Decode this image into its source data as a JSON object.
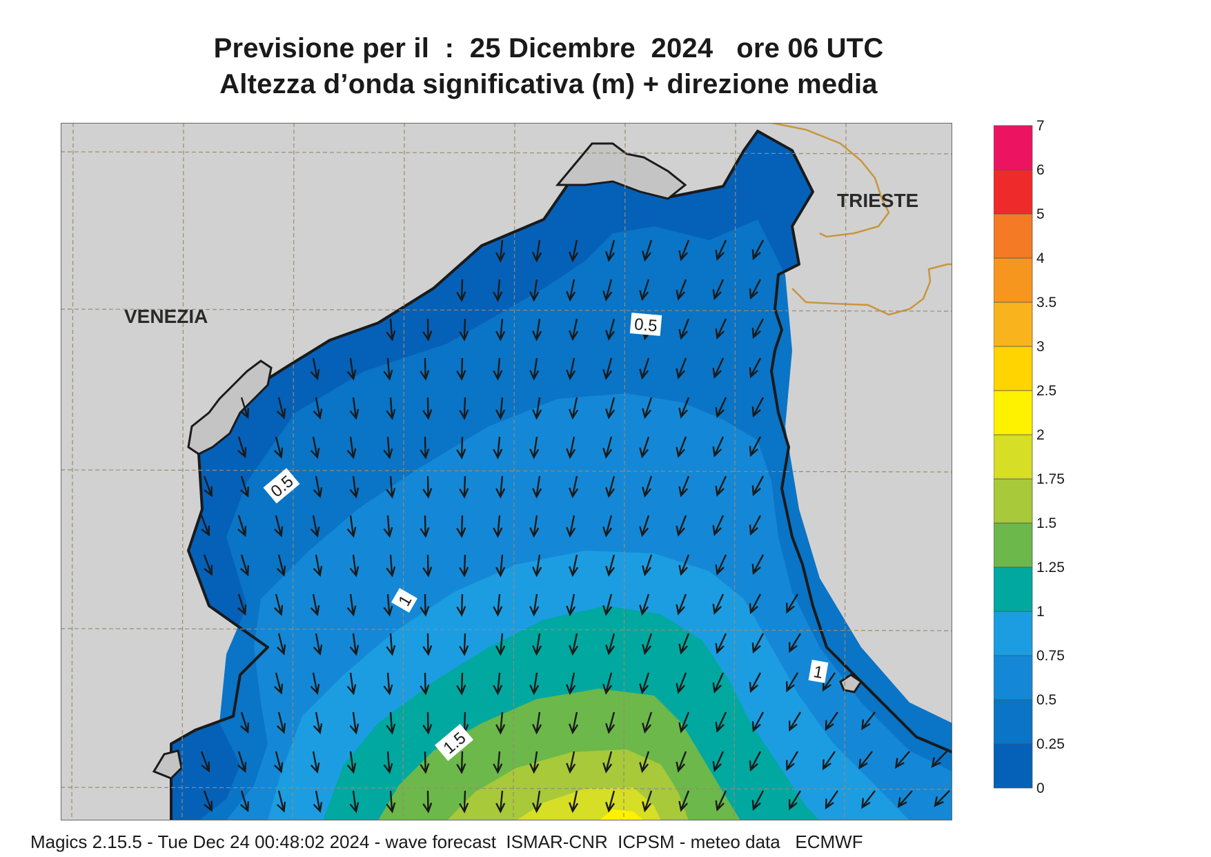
{
  "header": {
    "line1": "Previsione per il  :  25 Dicembre  2024   ore 06 UTC",
    "line2": "Altezza d’onda significativa (m) + direzione media"
  },
  "map": {
    "cities": [
      {
        "name": "VENEZIA"
      },
      {
        "name": "TRIESTE"
      }
    ],
    "contour_labels": [
      "0.5",
      "0.5",
      "1",
      "1",
      "1.5"
    ],
    "arrow_direction": "south",
    "colors": {
      "land": "#d1d1d1",
      "coast": "#1a1a1a",
      "border": "#c8963a",
      "grid": "#9a8a70",
      "arrow": "#1a1a1a"
    }
  },
  "legend": {
    "ticks": [
      "0",
      "0.25",
      "0.5",
      "0.75",
      "1",
      "1.25",
      "1.5",
      "1.75",
      "2",
      "2.5",
      "3",
      "3.5",
      "4",
      "5",
      "6",
      "7"
    ],
    "colors": [
      "#0560b8",
      "#0a74c6",
      "#1488d6",
      "#1c9de2",
      "#00a8a0",
      "#6cb84a",
      "#a7c93a",
      "#d6de26",
      "#fff200",
      "#ffd400",
      "#f9b31c",
      "#f7961e",
      "#f47a26",
      "#ee2a2a",
      "#ec1460"
    ]
  },
  "footer": {
    "text": "Magics 2.15.5 - Tue Dec 24 00:48:02 2024 - wave forecast  ISMAR-CNR  ICPSM - meteo data   ECMWF"
  }
}
